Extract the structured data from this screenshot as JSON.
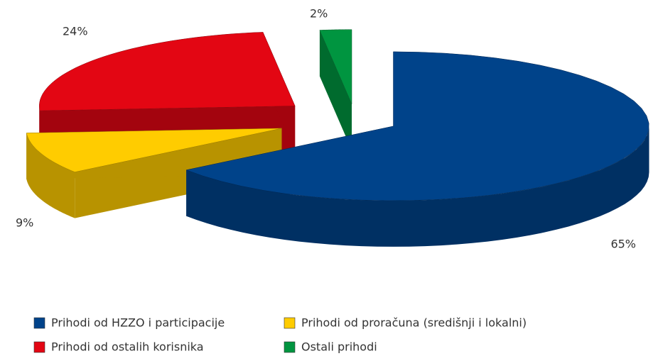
{
  "chart_data": {
    "type": "pie",
    "categories": [
      "Prihodi od HZZO i participacije",
      "Prihodi od proračuna (središnji i lokalni)",
      "Prihodi od ostalih korisnika",
      "Ostali prihodi"
    ],
    "values": [
      65,
      9,
      24,
      2
    ],
    "value_labels": [
      "65%",
      "9%",
      "24%",
      "2%"
    ],
    "colors": [
      "#00438a",
      "#ffcc00",
      "#e30613",
      "#009540"
    ],
    "legend": "bottom"
  }
}
